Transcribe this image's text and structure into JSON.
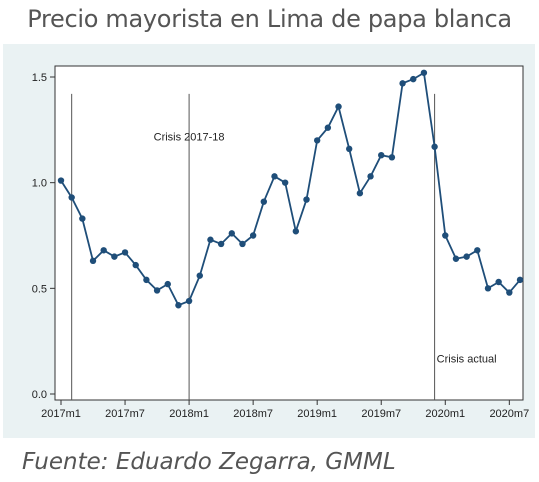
{
  "header": {
    "title": "Precio mayorista en Lima de papa blanca"
  },
  "footer": {
    "source": "Fuente: Eduardo Zegarra, GMML"
  },
  "chart_data": {
    "type": "line",
    "title": "Precio mayorista en Lima de papa blanca",
    "xlabel": "",
    "ylabel": "",
    "x": [
      "2017m1",
      "2017m2",
      "2017m3",
      "2017m4",
      "2017m5",
      "2017m6",
      "2017m7",
      "2017m8",
      "2017m9",
      "2017m10",
      "2017m11",
      "2017m12",
      "2018m1",
      "2018m2",
      "2018m3",
      "2018m4",
      "2018m5",
      "2018m6",
      "2018m7",
      "2018m8",
      "2018m9",
      "2018m10",
      "2018m11",
      "2018m12",
      "2019m1",
      "2019m2",
      "2019m3",
      "2019m4",
      "2019m5",
      "2019m6",
      "2019m7",
      "2019m8",
      "2019m9",
      "2019m10",
      "2019m11",
      "2019m12",
      "2020m1",
      "2020m2",
      "2020m3",
      "2020m4",
      "2020m5",
      "2020m6",
      "2020m7",
      "2020m8"
    ],
    "series": [
      {
        "values": [
          1.01,
          0.93,
          0.83,
          0.63,
          0.68,
          0.65,
          0.67,
          0.61,
          0.54,
          0.49,
          0.52,
          0.42,
          0.44,
          0.56,
          0.73,
          0.71,
          0.76,
          0.71,
          0.75,
          0.91,
          1.03,
          1.0,
          0.77,
          0.92,
          1.2,
          1.26,
          1.36,
          1.16,
          0.95,
          1.03,
          1.13,
          1.12,
          1.47,
          1.49,
          1.52,
          1.17,
          0.75,
          0.64,
          0.65,
          0.68,
          0.5,
          0.53,
          0.48,
          0.54
        ],
        "color": "#1f4e79"
      }
    ],
    "x_ticks": [
      "2017m1",
      "2017m7",
      "2018m1",
      "2018m7",
      "2019m1",
      "2019m7",
      "2020m1",
      "2020m7"
    ],
    "y_ticks": [
      "0.0",
      "0.5",
      "1.0",
      "1.5"
    ],
    "ylim": [
      0,
      1.55
    ],
    "grid": false,
    "annotations": [
      {
        "text": "Crisis 2017-18",
        "x": "2018m1"
      },
      {
        "text": "Crisis actual",
        "x": "2020m3"
      }
    ],
    "vlines": [
      "2017m2",
      "2018m1",
      "2019m12"
    ],
    "background_color": "#eaf2f3",
    "line_color": "#1f4e79"
  }
}
